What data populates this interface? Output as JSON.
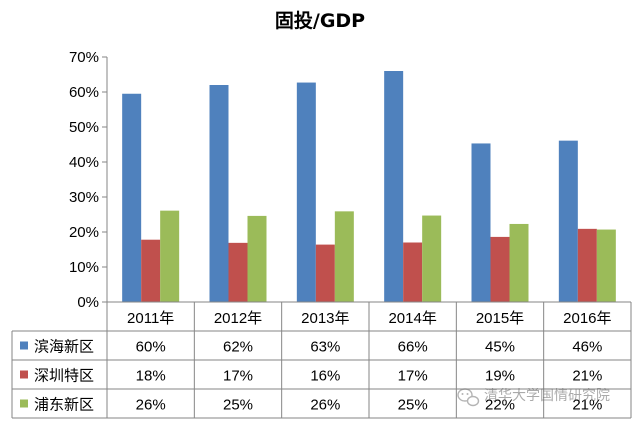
{
  "chart_data": {
    "type": "bar",
    "title": "固投/GDP",
    "categories": [
      "2011年",
      "2012年",
      "2013年",
      "2014年",
      "2015年",
      "2016年"
    ],
    "series": [
      {
        "name": "滨海新区",
        "color": "#4F81BD",
        "values": [
          59.5,
          62,
          62.7,
          66,
          45.3,
          46.1
        ],
        "labels": [
          "60%",
          "62%",
          "63%",
          "66%",
          "45%",
          "46%"
        ]
      },
      {
        "name": "深圳特区",
        "color": "#C0504D",
        "values": [
          17.8,
          16.9,
          16.4,
          17,
          18.6,
          20.9
        ],
        "labels": [
          "18%",
          "17%",
          "16%",
          "17%",
          "19%",
          "21%"
        ]
      },
      {
        "name": "浦东新区",
        "color": "#9BBB59",
        "values": [
          26.1,
          24.6,
          25.9,
          24.7,
          22.3,
          20.7
        ],
        "labels": [
          "26%",
          "25%",
          "26%",
          "25%",
          "22%",
          "21%"
        ]
      }
    ],
    "yticks": [
      "0%",
      "10%",
      "20%",
      "30%",
      "40%",
      "50%",
      "60%",
      "70%"
    ],
    "ylim": [
      0,
      70
    ],
    "xlabel": "",
    "ylabel": "",
    "grid": false,
    "legend": "data-table"
  },
  "watermark": {
    "text": "清华大学国情研究院",
    "icon": "wechat-icon"
  }
}
